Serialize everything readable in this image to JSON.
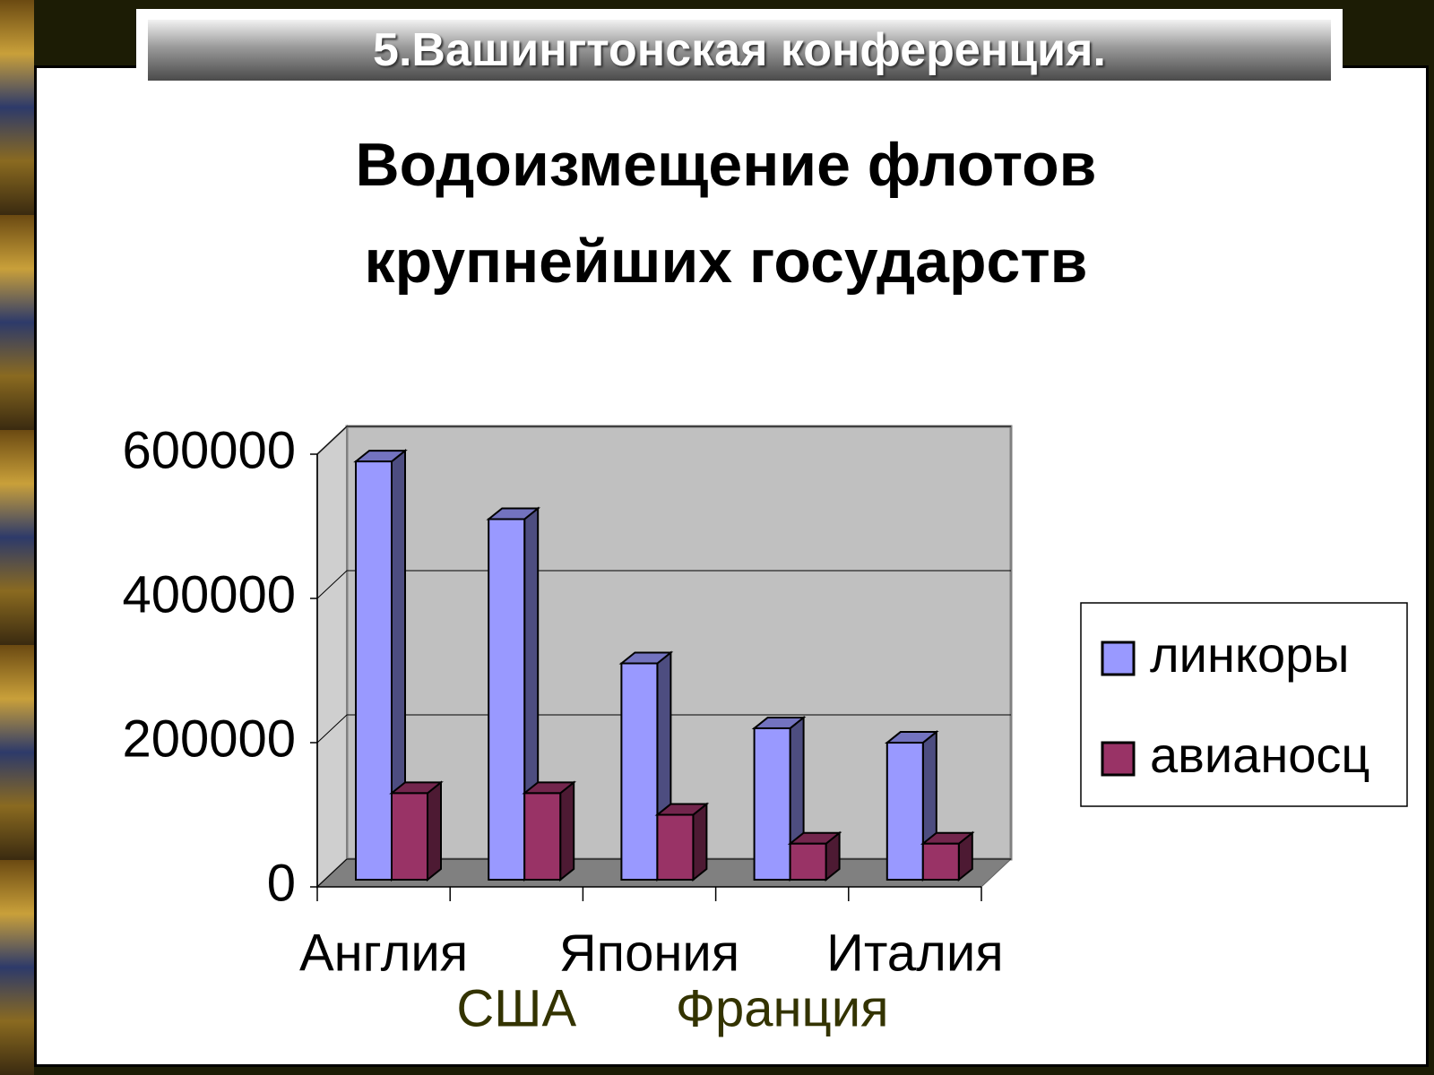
{
  "header": {
    "title": "5.Вашингтонская конференция."
  },
  "chart_data": {
    "type": "bar3d",
    "title": "Водоизмещение флотов крупнейших государств",
    "categories": [
      "Англия",
      "США",
      "Япония",
      "Франция",
      "Италия"
    ],
    "series": [
      {
        "name": "линкоры",
        "color": "#9999ff",
        "values": [
          580000,
          500000,
          300000,
          210000,
          190000
        ]
      },
      {
        "name": "авианосц",
        "color": "#993366",
        "values": [
          120000,
          120000,
          90000,
          50000,
          50000
        ]
      }
    ],
    "ylim": [
      0,
      600000
    ],
    "yticks": [
      0,
      200000,
      400000,
      600000
    ],
    "grid": true,
    "legend": "right"
  }
}
